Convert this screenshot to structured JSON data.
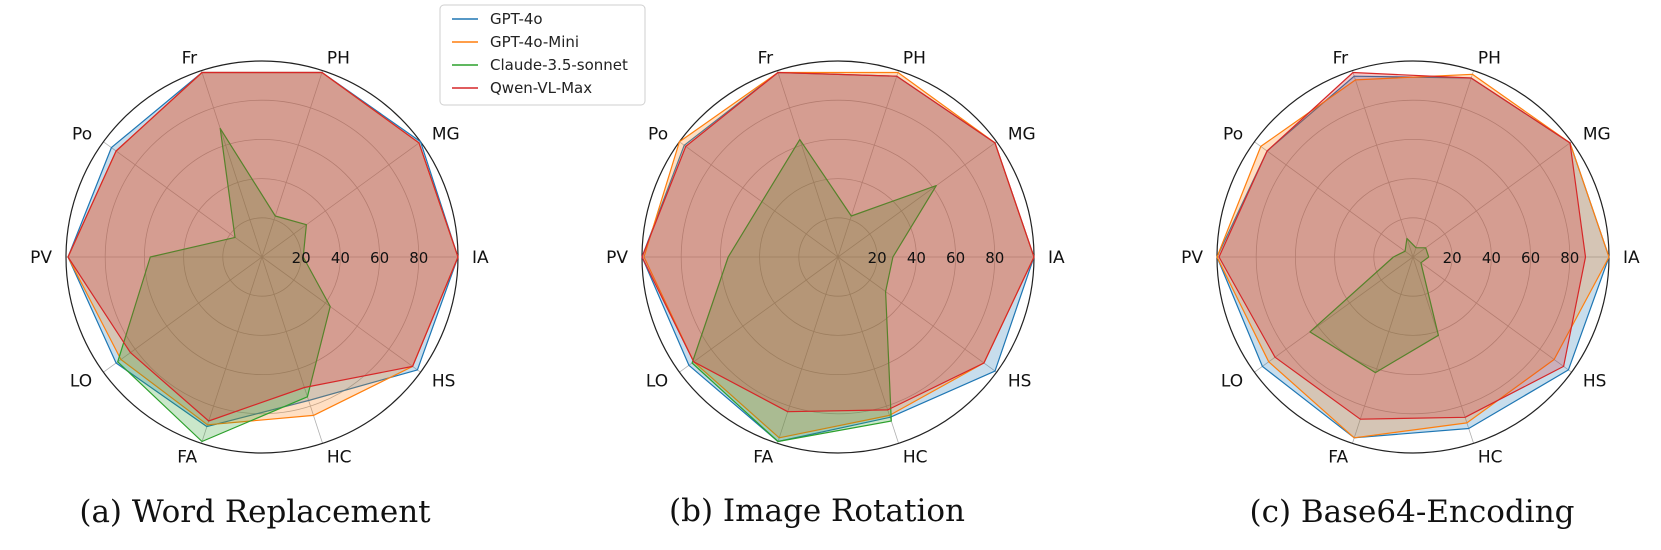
{
  "legend": {
    "items": [
      {
        "name": "GPT-4o",
        "color": "#1f77b4"
      },
      {
        "name": "GPT-4o-Mini",
        "color": "#ff7f0e"
      },
      {
        "name": "Claude-3.5-sonnet",
        "color": "#2ca02c"
      },
      {
        "name": "Qwen-VL-Max",
        "color": "#d62728"
      }
    ]
  },
  "chart_data": [
    {
      "type": "radar",
      "title": "(a) Word Replacement",
      "categories": [
        "IA",
        "MG",
        "PH",
        "Fr",
        "Po",
        "PV",
        "LO",
        "FA",
        "HC",
        "HS"
      ],
      "rlim": [
        0,
        100
      ],
      "rticks": [
        20,
        40,
        60,
        80
      ],
      "grid": true,
      "series": [
        {
          "name": "GPT-4o",
          "values": [
            100,
            100,
            99,
            99,
            95,
            99,
            92,
            91,
            77,
            98
          ]
        },
        {
          "name": "GPT-4o-Mini",
          "values": [
            100,
            99,
            99,
            99,
            92,
            99,
            89,
            90,
            85,
            95
          ]
        },
        {
          "name": "Claude-3.5-sonnet",
          "values": [
            21,
            28,
            22,
            69,
            17,
            57,
            91,
            99,
            75,
            43
          ]
        },
        {
          "name": "Qwen-VL-Max",
          "values": [
            100,
            99,
            99,
            99,
            92,
            99,
            83,
            88,
            70,
            95
          ]
        }
      ]
    },
    {
      "type": "radar",
      "title": "(b) Image Rotation",
      "categories": [
        "IA",
        "MG",
        "PH",
        "Fr",
        "Po",
        "PV",
        "LO",
        "FA",
        "HC",
        "HS"
      ],
      "rlim": [
        0,
        100
      ],
      "rticks": [
        20,
        40,
        60,
        80
      ],
      "grid": true,
      "series": [
        {
          "name": "GPT-4o",
          "values": [
            100,
            99,
            97,
            99,
            97,
            100,
            94,
            99,
            86,
            99
          ]
        },
        {
          "name": "GPT-4o-Mini",
          "values": [
            100,
            99,
            99,
            99,
            100,
            99,
            91,
            97,
            85,
            92
          ]
        },
        {
          "name": "Claude-3.5-sonnet",
          "values": [
            28,
            62,
            22,
            63,
            48,
            56,
            92,
            99,
            88,
            30
          ]
        },
        {
          "name": "Qwen-VL-Max",
          "values": [
            100,
            99,
            97,
            99,
            96,
            100,
            91,
            83,
            82,
            92
          ]
        }
      ]
    },
    {
      "type": "radar",
      "title": "(c) Base64-Encoding",
      "categories": [
        "IA",
        "MG",
        "PH",
        "Fr",
        "Po",
        "PV",
        "LO",
        "FA",
        "HC",
        "HS"
      ],
      "rlim": [
        0,
        100
      ],
      "rticks": [
        20,
        40,
        60,
        80
      ],
      "grid": true,
      "series": [
        {
          "name": "GPT-4o",
          "values": [
            100,
            99,
            96,
            97,
            92,
            100,
            95,
            97,
            92,
            98
          ]
        },
        {
          "name": "GPT-4o-Mini",
          "values": [
            100,
            99,
            98,
            95,
            96,
            100,
            91,
            97,
            89,
            89
          ]
        },
        {
          "name": "Claude-3.5-sonnet",
          "values": [
            8,
            8,
            5,
            10,
            5,
            10,
            65,
            62,
            42,
            5
          ]
        },
        {
          "name": "Qwen-VL-Max",
          "values": [
            88,
            99,
            96,
            99,
            92,
            99,
            87,
            87,
            86,
            95
          ]
        }
      ]
    }
  ]
}
